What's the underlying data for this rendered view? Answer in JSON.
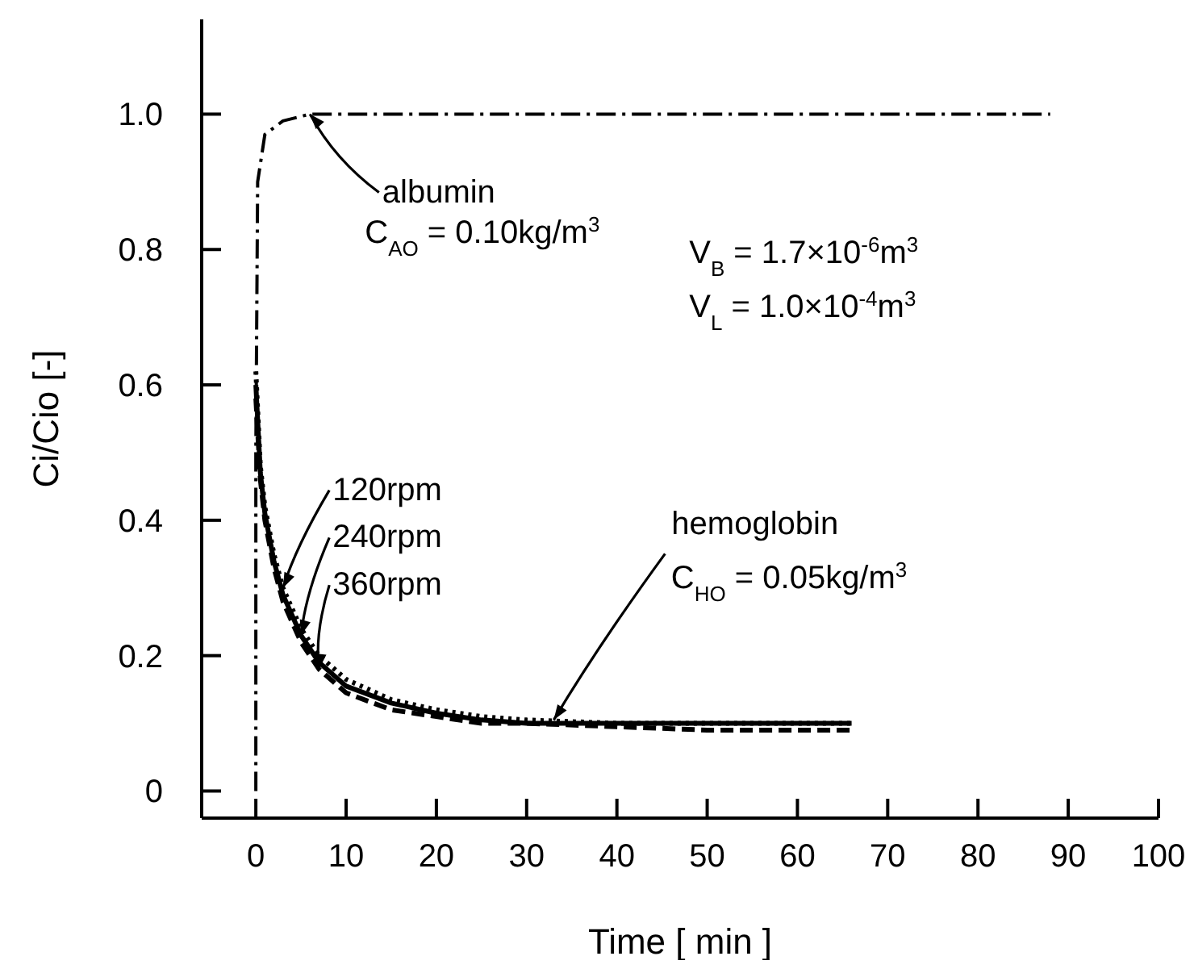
{
  "chart_data": {
    "type": "line",
    "xlabel": "Time [ min ]",
    "ylabel": "Ci/Cio [-]",
    "xlim": [
      -6,
      100
    ],
    "ylim": [
      -0.04,
      1.14
    ],
    "xticks": [
      0,
      10,
      20,
      30,
      40,
      50,
      60,
      70,
      80,
      90,
      100
    ],
    "yticks": [
      0,
      0.2,
      0.4,
      0.6,
      0.8,
      {
        "value": 1,
        "label": "1.0"
      }
    ],
    "grid": false,
    "marker": "none",
    "series": [
      {
        "name": "albumin",
        "color": "#000000",
        "line_style": "dashdot",
        "x": [
          0,
          0,
          0.2,
          1,
          3,
          6,
          88
        ],
        "values": [
          0,
          0.5,
          0.9,
          0.97,
          0.99,
          1.0,
          1.0
        ]
      },
      {
        "name": "120rpm",
        "color": "#000000",
        "line_style": "dotted",
        "x": [
          0,
          0.5,
          1,
          2,
          3,
          5,
          7,
          10,
          15,
          20,
          25,
          30,
          40,
          50,
          66
        ],
        "values": [
          0.62,
          0.48,
          0.42,
          0.35,
          0.3,
          0.24,
          0.2,
          0.165,
          0.135,
          0.12,
          0.11,
          0.105,
          0.1,
          0.1,
          0.1
        ]
      },
      {
        "name": "240rpm",
        "color": "#000000",
        "line_style": "solid",
        "x": [
          0,
          0.5,
          1,
          2,
          3,
          5,
          7,
          10,
          15,
          20,
          25,
          30,
          40,
          50,
          66
        ],
        "values": [
          0.6,
          0.47,
          0.41,
          0.34,
          0.29,
          0.23,
          0.19,
          0.155,
          0.13,
          0.115,
          0.105,
          0.1,
          0.1,
          0.1,
          0.1
        ]
      },
      {
        "name": "360rpm",
        "color": "#000000",
        "line_style": "dashed",
        "x": [
          0,
          0.5,
          1,
          2,
          3,
          5,
          7,
          10,
          15,
          20,
          25,
          30,
          40,
          50,
          66
        ],
        "values": [
          0.58,
          0.46,
          0.4,
          0.33,
          0.28,
          0.22,
          0.18,
          0.145,
          0.12,
          0.11,
          0.1,
          0.1,
          0.095,
          0.09,
          0.09
        ]
      }
    ],
    "annotations": [
      {
        "text": "C$_{AO}$ = 0.10kg/m$^{3}$",
        "x": 6,
        "y": 1.0
      },
      "V$_{B}$ = 1.7×10$^{-6}$m$^{3}$",
      "V$_{L}$ = 1.0×10$^{-4}$m$^{3}$",
      {
        "text": "hemoglobin",
        "x": 33,
        "y": 0.105
      },
      "C$_{HO}$ = 0.05kg/m$^{3}$"
    ]
  }
}
